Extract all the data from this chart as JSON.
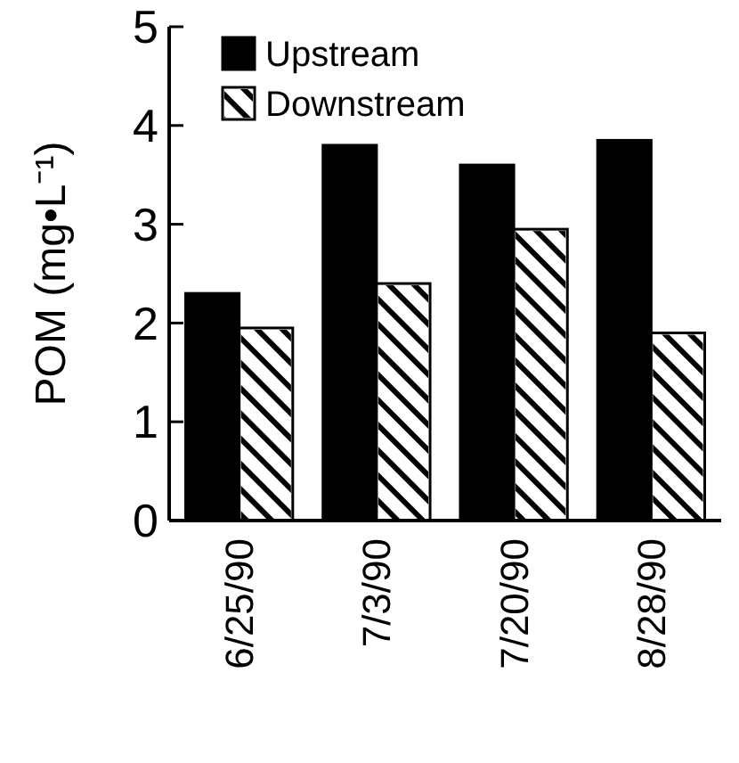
{
  "chart_data": {
    "type": "bar",
    "ylabel": "POM (mg•L⁻¹)",
    "categories": [
      "6/25/90",
      "7/3/90",
      "7/20/90",
      "8/28/90"
    ],
    "series": [
      {
        "name": "Upstream",
        "color": "#000000",
        "values": [
          2.3,
          3.8,
          3.6,
          3.85
        ]
      },
      {
        "name": "Downstream",
        "color": "#ffffff",
        "values": [
          1.95,
          2.4,
          2.95,
          1.9
        ]
      }
    ],
    "ylim": [
      0,
      5
    ],
    "yticks": [
      0,
      1,
      2,
      3,
      4,
      5
    ],
    "grid": false,
    "legend": "top left"
  }
}
